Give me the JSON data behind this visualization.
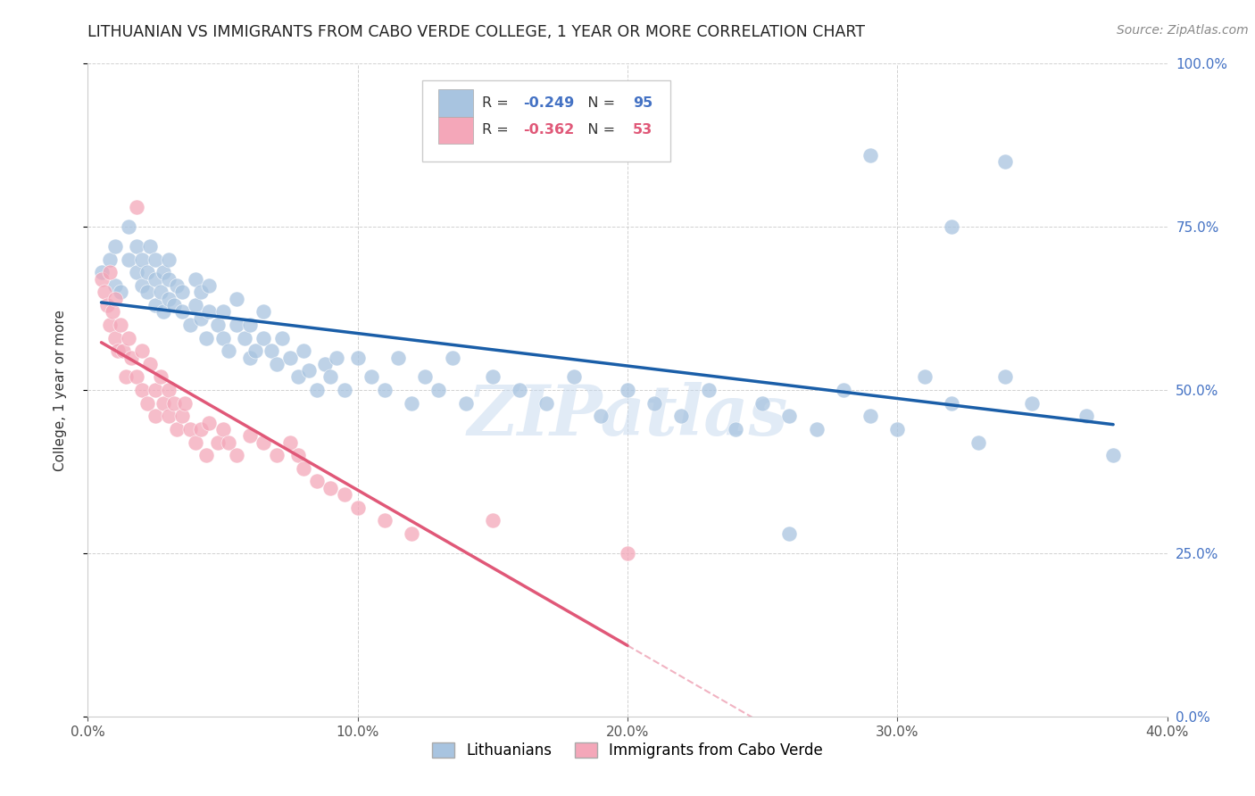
{
  "title": "LITHUANIAN VS IMMIGRANTS FROM CABO VERDE COLLEGE, 1 YEAR OR MORE CORRELATION CHART",
  "source": "Source: ZipAtlas.com",
  "ylabel": "College, 1 year or more",
  "xlabel_ticks": [
    "0.0%",
    "10.0%",
    "20.0%",
    "30.0%",
    "40.0%"
  ],
  "xlabel_vals": [
    0.0,
    0.1,
    0.2,
    0.3,
    0.4
  ],
  "ylabel_ticks": [
    "0.0%",
    "25.0%",
    "50.0%",
    "75.0%",
    "100.0%"
  ],
  "ylabel_vals": [
    0.0,
    0.25,
    0.5,
    0.75,
    1.0
  ],
  "xlim": [
    0.0,
    0.4
  ],
  "ylim": [
    0.0,
    1.0
  ],
  "legend_labels": [
    "Lithuanians",
    "Immigrants from Cabo Verde"
  ],
  "R_blue": -0.249,
  "N_blue": 95,
  "R_pink": -0.362,
  "N_pink": 53,
  "blue_color": "#a8c4e0",
  "pink_color": "#f4a7b9",
  "blue_line_color": "#1a5ea8",
  "pink_line_color": "#e05878",
  "watermark": "ZIPatlas",
  "blue_x": [
    0.005,
    0.008,
    0.01,
    0.01,
    0.012,
    0.015,
    0.015,
    0.018,
    0.018,
    0.02,
    0.02,
    0.022,
    0.022,
    0.023,
    0.025,
    0.025,
    0.025,
    0.027,
    0.028,
    0.028,
    0.03,
    0.03,
    0.03,
    0.032,
    0.033,
    0.035,
    0.035,
    0.038,
    0.04,
    0.04,
    0.042,
    0.042,
    0.044,
    0.045,
    0.045,
    0.048,
    0.05,
    0.05,
    0.052,
    0.055,
    0.055,
    0.058,
    0.06,
    0.06,
    0.062,
    0.065,
    0.065,
    0.068,
    0.07,
    0.072,
    0.075,
    0.078,
    0.08,
    0.082,
    0.085,
    0.088,
    0.09,
    0.092,
    0.095,
    0.1,
    0.105,
    0.11,
    0.115,
    0.12,
    0.125,
    0.13,
    0.135,
    0.14,
    0.15,
    0.16,
    0.17,
    0.18,
    0.19,
    0.2,
    0.21,
    0.22,
    0.23,
    0.24,
    0.25,
    0.26,
    0.27,
    0.28,
    0.29,
    0.3,
    0.32,
    0.33,
    0.34,
    0.35,
    0.26,
    0.31,
    0.37,
    0.38,
    0.32,
    0.29,
    0.34
  ],
  "blue_y": [
    0.68,
    0.7,
    0.66,
    0.72,
    0.65,
    0.7,
    0.75,
    0.68,
    0.72,
    0.66,
    0.7,
    0.65,
    0.68,
    0.72,
    0.63,
    0.67,
    0.7,
    0.65,
    0.68,
    0.62,
    0.64,
    0.67,
    0.7,
    0.63,
    0.66,
    0.62,
    0.65,
    0.6,
    0.63,
    0.67,
    0.61,
    0.65,
    0.58,
    0.62,
    0.66,
    0.6,
    0.58,
    0.62,
    0.56,
    0.6,
    0.64,
    0.58,
    0.55,
    0.6,
    0.56,
    0.58,
    0.62,
    0.56,
    0.54,
    0.58,
    0.55,
    0.52,
    0.56,
    0.53,
    0.5,
    0.54,
    0.52,
    0.55,
    0.5,
    0.55,
    0.52,
    0.5,
    0.55,
    0.48,
    0.52,
    0.5,
    0.55,
    0.48,
    0.52,
    0.5,
    0.48,
    0.52,
    0.46,
    0.5,
    0.48,
    0.46,
    0.5,
    0.44,
    0.48,
    0.46,
    0.44,
    0.5,
    0.46,
    0.44,
    0.48,
    0.42,
    0.52,
    0.48,
    0.28,
    0.52,
    0.46,
    0.4,
    0.75,
    0.86,
    0.85
  ],
  "pink_x": [
    0.005,
    0.006,
    0.007,
    0.008,
    0.008,
    0.009,
    0.01,
    0.01,
    0.011,
    0.012,
    0.013,
    0.014,
    0.015,
    0.016,
    0.018,
    0.018,
    0.02,
    0.02,
    0.022,
    0.023,
    0.025,
    0.025,
    0.027,
    0.028,
    0.03,
    0.03,
    0.032,
    0.033,
    0.035,
    0.036,
    0.038,
    0.04,
    0.042,
    0.044,
    0.045,
    0.048,
    0.05,
    0.052,
    0.055,
    0.06,
    0.065,
    0.07,
    0.075,
    0.078,
    0.08,
    0.085,
    0.09,
    0.095,
    0.1,
    0.11,
    0.12,
    0.15,
    0.2
  ],
  "pink_y": [
    0.67,
    0.65,
    0.63,
    0.68,
    0.6,
    0.62,
    0.58,
    0.64,
    0.56,
    0.6,
    0.56,
    0.52,
    0.58,
    0.55,
    0.52,
    0.78,
    0.5,
    0.56,
    0.48,
    0.54,
    0.5,
    0.46,
    0.52,
    0.48,
    0.5,
    0.46,
    0.48,
    0.44,
    0.46,
    0.48,
    0.44,
    0.42,
    0.44,
    0.4,
    0.45,
    0.42,
    0.44,
    0.42,
    0.4,
    0.43,
    0.42,
    0.4,
    0.42,
    0.4,
    0.38,
    0.36,
    0.35,
    0.34,
    0.32,
    0.3,
    0.28,
    0.3,
    0.25
  ]
}
